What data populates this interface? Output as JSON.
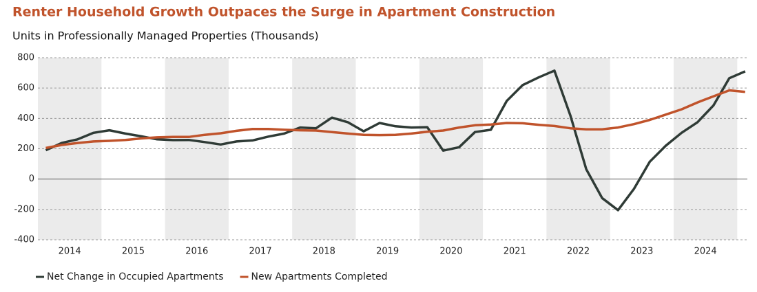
{
  "chart_data": {
    "type": "line",
    "title": "Renter Household Growth Outpaces the Surge in Apartment Construction",
    "subtitle": "Units in Professionally Managed Properties (Thousands)",
    "years": [
      "2014",
      "2015",
      "2016",
      "2017",
      "2018",
      "2019",
      "2020",
      "2021",
      "2022",
      "2023",
      "2024"
    ],
    "series": [
      {
        "name": "Net Change in Occupied Apartments",
        "color": "#2f3b36",
        "values": [
          190,
          238,
          262,
          305,
          322,
          300,
          282,
          262,
          257,
          258,
          244,
          228,
          248,
          255,
          280,
          300,
          340,
          335,
          405,
          375,
          315,
          370,
          348,
          340,
          342,
          188,
          210,
          310,
          325,
          515,
          620,
          670,
          715,
          420,
          65,
          -125,
          -205,
          -65,
          115,
          220,
          305,
          375,
          485,
          665,
          710
        ]
      },
      {
        "name": "New Apartments Completed",
        "color": "#c0532b",
        "values": [
          205,
          225,
          238,
          248,
          252,
          258,
          268,
          275,
          278,
          278,
          292,
          302,
          318,
          330,
          330,
          325,
          322,
          320,
          310,
          300,
          292,
          290,
          292,
          300,
          312,
          320,
          340,
          355,
          360,
          370,
          368,
          358,
          350,
          335,
          328,
          328,
          340,
          362,
          390,
          425,
          460,
          505,
          545,
          585,
          575
        ]
      }
    ],
    "ylim": [
      -400,
      800
    ],
    "yticks": [
      -400,
      -200,
      0,
      200,
      400,
      600,
      800
    ],
    "grid": true
  }
}
